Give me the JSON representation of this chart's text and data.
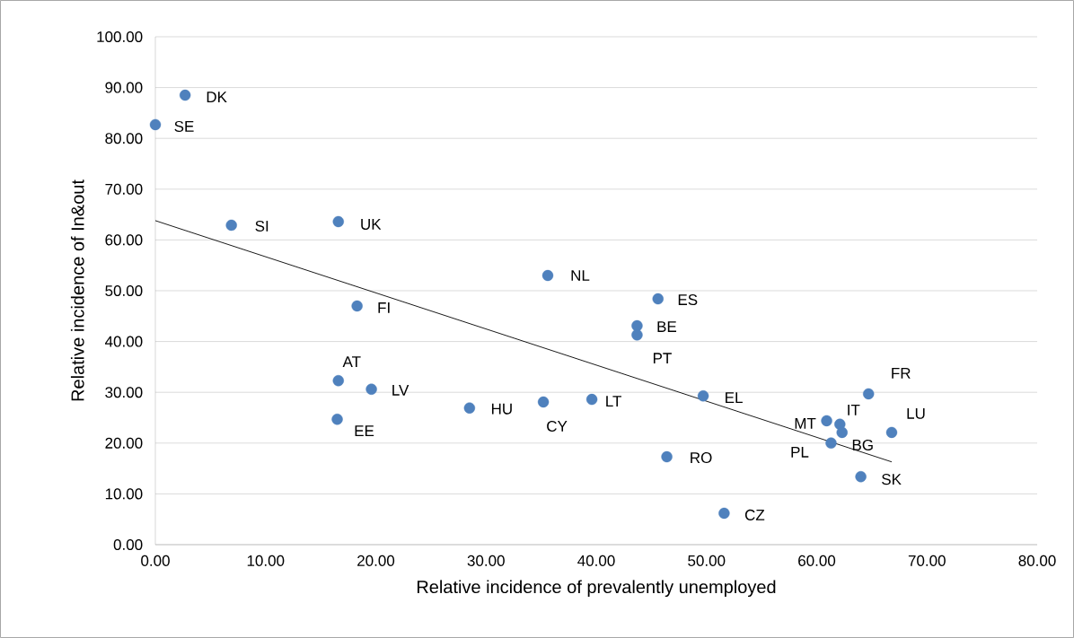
{
  "chart_data": {
    "type": "scatter",
    "xlabel": "Relative incidence of prevalently unemployed",
    "ylabel": "Relative incidence of In&out",
    "x": [
      0,
      2.7,
      6.9,
      16.6,
      35.6,
      45.6,
      43.7,
      43.7,
      18.3,
      16.6,
      19.6,
      16.5,
      28.5,
      35.2,
      39.6,
      49.7,
      46.4,
      51.6,
      64.7,
      60.9,
      62.1,
      62.3,
      61.3,
      66.8,
      64.0
    ],
    "series": [
      {
        "color": "#4f81bd",
        "marker": "circle",
        "values": [
          82.7,
          88.5,
          62.9,
          63.6,
          53.0,
          48.4,
          43.1,
          41.3,
          47.0,
          32.3,
          30.6,
          24.7,
          26.9,
          28.1,
          28.6,
          29.3,
          17.3,
          6.2,
          29.7,
          24.4,
          23.7,
          22.1,
          20.0,
          22.1,
          13.4
        ]
      },
      {
        "type": "line",
        "marker": "none",
        "color": "#000000",
        "x": [
          0,
          66.8
        ],
        "values": [
          63.8,
          16.3
        ]
      }
    ],
    "annotations": [
      {
        "text": "SE",
        "x": 0,
        "y": 82.7
      },
      {
        "text": "DK",
        "x": 2.7,
        "y": 88.5
      },
      {
        "text": "SI",
        "x": 6.9,
        "y": 62.9
      },
      {
        "text": "UK",
        "x": 16.6,
        "y": 63.6
      },
      {
        "text": "NL",
        "x": 35.6,
        "y": 53.0
      },
      {
        "text": "ES",
        "x": 45.6,
        "y": 48.4
      },
      {
        "text": "BE",
        "x": 43.7,
        "y": 43.1
      },
      {
        "text": "PT",
        "x": 43.7,
        "y": 41.3
      },
      {
        "text": "FI",
        "x": 18.3,
        "y": 47.0
      },
      {
        "text": "AT",
        "x": 16.6,
        "y": 32.3
      },
      {
        "text": "LV",
        "x": 19.6,
        "y": 30.6
      },
      {
        "text": "EE",
        "x": 16.5,
        "y": 24.7
      },
      {
        "text": "HU",
        "x": 28.5,
        "y": 26.9
      },
      {
        "text": "CY",
        "x": 35.2,
        "y": 28.1
      },
      {
        "text": "LT",
        "x": 39.6,
        "y": 28.6
      },
      {
        "text": "EL",
        "x": 49.7,
        "y": 29.3
      },
      {
        "text": "RO",
        "x": 46.4,
        "y": 17.3
      },
      {
        "text": "CZ",
        "x": 51.6,
        "y": 6.2
      },
      {
        "text": "FR",
        "x": 64.7,
        "y": 29.7
      },
      {
        "text": "MT",
        "x": 60.9,
        "y": 24.4
      },
      {
        "text": "IT",
        "x": 62.1,
        "y": 23.7
      },
      {
        "text": "BG",
        "x": 62.3,
        "y": 22.1
      },
      {
        "text": "PL",
        "x": 61.3,
        "y": 20.0
      },
      {
        "text": "LU",
        "x": 66.8,
        "y": 22.1
      },
      {
        "text": "SK",
        "x": 64.0,
        "y": 13.4
      }
    ],
    "xlim": [
      0,
      80
    ],
    "ylim": [
      0,
      100
    ],
    "xticks": [
      {
        "value": 0,
        "label": "0.00"
      },
      {
        "value": 10,
        "label": "10.00"
      },
      {
        "value": 20,
        "label": "20.00"
      },
      {
        "value": 30,
        "label": "30.00"
      },
      {
        "value": 40,
        "label": "40.00"
      },
      {
        "value": 50,
        "label": "50.00"
      },
      {
        "value": 60,
        "label": "60.00"
      },
      {
        "value": 70,
        "label": "70.00"
      },
      {
        "value": 80,
        "label": "80.00"
      }
    ],
    "yticks": [
      {
        "value": 0,
        "label": "0.00"
      },
      {
        "value": 10,
        "label": "10.00"
      },
      {
        "value": 20,
        "label": "20.00"
      },
      {
        "value": 30,
        "label": "30.00"
      },
      {
        "value": 40,
        "label": "40.00"
      },
      {
        "value": 50,
        "label": "50.00"
      },
      {
        "value": 60,
        "label": "60.00"
      },
      {
        "value": 70,
        "label": "70.00"
      },
      {
        "value": 80,
        "label": "80.00"
      },
      {
        "value": 90,
        "label": "90.00"
      },
      {
        "value": 100,
        "label": "100.00"
      }
    ],
    "grid": "y"
  }
}
